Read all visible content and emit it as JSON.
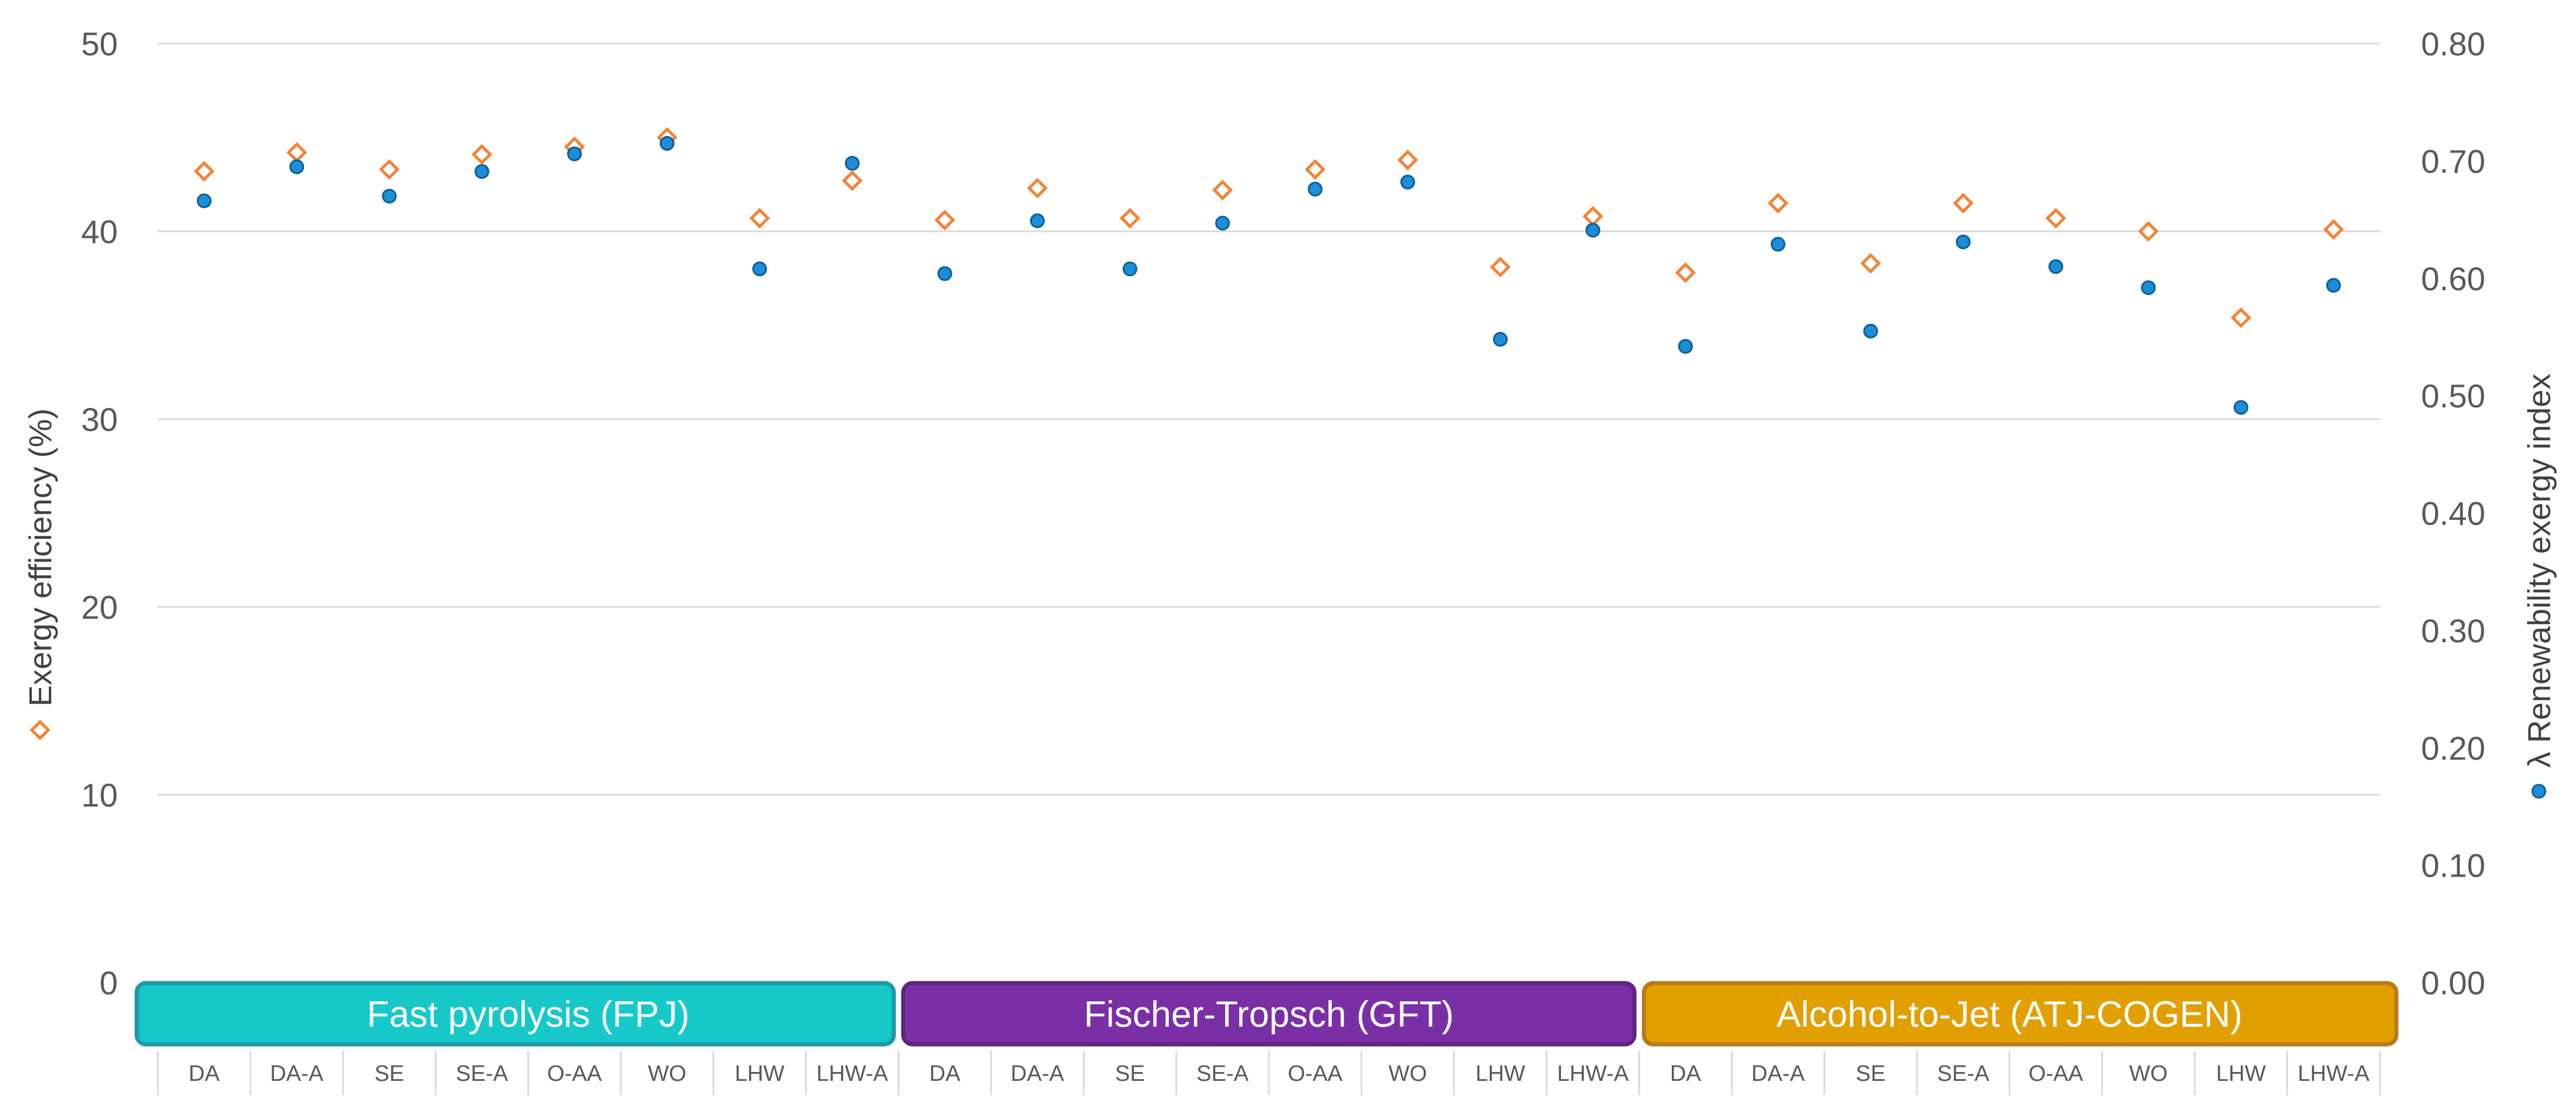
{
  "chart_data": {
    "type": "scatter",
    "title": "",
    "xlabel": "",
    "ylabel_left": "Exergy efficiency (%)",
    "ylabel_right": "λ  Renewability exergy index",
    "ylim_left": [
      0,
      50
    ],
    "ylim_right": [
      0,
      0.8
    ],
    "yticks_left": [
      "0",
      "10",
      "20",
      "30",
      "40",
      "50"
    ],
    "yticks_right": [
      "0.00",
      "0.10",
      "0.20",
      "0.30",
      "0.40",
      "0.50",
      "0.60",
      "0.70",
      "0.80"
    ],
    "grid": true,
    "categories": [
      "DA",
      "DA-A",
      "SE",
      "SE-A",
      "O-AA",
      "WO",
      "LHW",
      "LHW-A",
      "DA",
      "DA-A",
      "SE",
      "SE-A",
      "O-AA",
      "WO",
      "LHW",
      "LHW-A",
      "DA",
      "DA-A",
      "SE",
      "SE-A",
      "O-AA",
      "WO",
      "LHW",
      "LHW-A"
    ],
    "groups": [
      {
        "label": "Fast pyrolysis (FPJ)",
        "color": "#17c8c8",
        "border": "#1a9aa8",
        "start": 0,
        "count": 8
      },
      {
        "label": "Fischer-Tropsch (GFT)",
        "color": "#7b2fa6",
        "border": "#5d2680",
        "start": 8,
        "count": 8
      },
      {
        "label": "Alcohol-to-Jet (ATJ-COGEN)",
        "color": "#e29f00",
        "border": "#b87a1a",
        "start": 16,
        "count": 8
      }
    ],
    "series": [
      {
        "axis": "left",
        "marker": "diamond",
        "color": "#f58231",
        "values": [
          43.2,
          44.2,
          43.3,
          44.1,
          44.5,
          45.0,
          40.7,
          42.7,
          40.6,
          42.3,
          40.7,
          42.2,
          43.3,
          43.8,
          38.1,
          40.8,
          37.8,
          41.5,
          38.3,
          41.5,
          40.7,
          40.0,
          35.4,
          40.1
        ]
      },
      {
        "axis": "right",
        "marker": "circle",
        "color": "#1c8ed8",
        "values": [
          0.666,
          0.695,
          0.67,
          0.691,
          0.706,
          0.715,
          0.608,
          0.698,
          0.604,
          0.649,
          0.608,
          0.647,
          0.676,
          0.682,
          0.548,
          0.641,
          0.542,
          0.629,
          0.555,
          0.631,
          0.61,
          0.592,
          0.49,
          0.594
        ]
      }
    ]
  }
}
